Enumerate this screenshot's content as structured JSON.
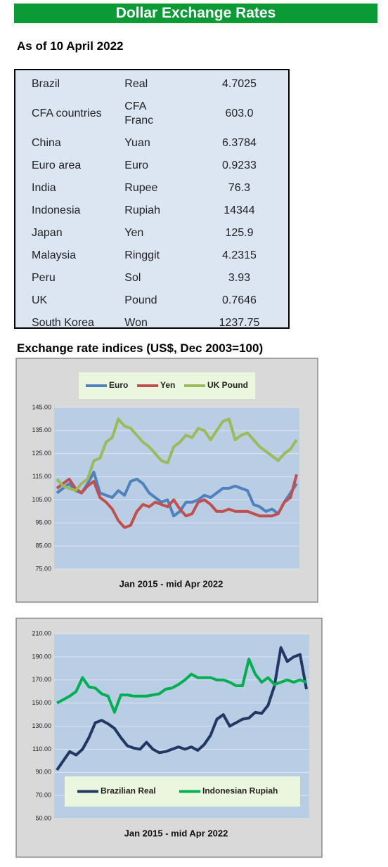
{
  "title": "Dollar Exchange Rates",
  "subtitle": "As of 10 April 2022",
  "table": {
    "rows": [
      [
        "Brazil",
        "Real",
        "4.7025"
      ],
      [
        "CFA countries",
        "CFA Franc",
        "603.0"
      ],
      [
        "China",
        "Yuan",
        "6.3784"
      ],
      [
        "Euro area",
        "Euro",
        "0.9233"
      ],
      [
        "India",
        "Rupee",
        "76.3"
      ],
      [
        "Indonesia",
        "Rupiah",
        "14344"
      ],
      [
        "Japan",
        "Yen",
        "125.9"
      ],
      [
        "Malaysia",
        "Ringgit",
        "4.2315"
      ],
      [
        "Peru",
        "Sol",
        "3.93"
      ],
      [
        "UK",
        "Pound",
        "0.7646"
      ],
      [
        "South Korea",
        "Won",
        "1237.75"
      ]
    ]
  },
  "section_title": "Exchange rate indices (US$, Dec 2003=100)",
  "chart_data": [
    {
      "type": "line",
      "caption": "Jan 2015 - mid Apr 2022",
      "grid": true,
      "ylim": [
        75,
        145
      ],
      "yticks": [
        {
          "value": 75,
          "label": "75.00"
        },
        {
          "value": 85,
          "label": "85.00"
        },
        {
          "value": 95,
          "label": "95.00"
        },
        {
          "value": 105,
          "label": "105.00"
        },
        {
          "value": 115,
          "label": "115.00"
        },
        {
          "value": 125,
          "label": "125.00"
        },
        {
          "value": 135,
          "label": "135.00"
        },
        {
          "value": 145,
          "label": "145.00"
        }
      ],
      "series": [
        {
          "name": "Euro",
          "color": "#4f81bd",
          "values": [
            108,
            110,
            112,
            109,
            108,
            112,
            117,
            108,
            107,
            106,
            109,
            107,
            113,
            114,
            112,
            108,
            106,
            104,
            105,
            98,
            100,
            104,
            104,
            105,
            107,
            106,
            108,
            110,
            110,
            111,
            110,
            109,
            103,
            102,
            100,
            101,
            99,
            104,
            108,
            112
          ]
        },
        {
          "name": "Yen",
          "color": "#c0504d",
          "values": [
            110,
            112,
            114,
            110,
            108,
            111,
            113,
            106,
            104,
            101,
            96,
            93,
            94,
            100,
            103,
            102,
            104,
            103,
            102,
            105,
            101,
            98,
            99,
            104,
            105,
            103,
            100,
            100,
            101,
            100,
            100,
            100,
            99,
            98,
            98,
            98,
            99,
            104,
            106,
            116
          ]
        },
        {
          "name": "UK Pound",
          "color": "#9bbb59",
          "values": [
            114,
            111,
            110,
            109,
            112,
            114,
            122,
            123,
            130,
            132,
            140,
            137,
            136,
            133,
            130,
            128,
            125,
            122,
            121,
            128,
            130,
            133,
            132,
            136,
            135,
            131,
            135,
            139,
            140,
            131,
            133,
            134,
            131,
            128,
            126,
            124,
            122,
            125,
            127,
            131
          ]
        }
      ]
    },
    {
      "type": "line",
      "caption": "Jan 2015 - mid Apr 2022",
      "grid": true,
      "ylim": [
        50,
        210
      ],
      "yticks": [
        {
          "value": 50,
          "label": "50.00"
        },
        {
          "value": 70,
          "label": "70.00"
        },
        {
          "value": 90,
          "label": "90.00"
        },
        {
          "value": 110,
          "label": "110.00"
        },
        {
          "value": 130,
          "label": "130.00"
        },
        {
          "value": 150,
          "label": "150.00"
        },
        {
          "value": 170,
          "label": "170.00"
        },
        {
          "value": 190,
          "label": "190.00"
        },
        {
          "value": 210,
          "label": "210.00"
        }
      ],
      "series": [
        {
          "name": "Brazilian Real",
          "color": "#1f3864",
          "values": [
            92,
            100,
            108,
            105,
            110,
            120,
            133,
            135,
            132,
            128,
            120,
            113,
            111,
            110,
            116,
            110,
            107,
            108,
            110,
            112,
            110,
            112,
            109,
            114,
            122,
            136,
            140,
            130,
            133,
            136,
            137,
            142,
            141,
            148,
            165,
            198,
            186,
            190,
            192,
            162
          ]
        },
        {
          "name": "Indonesian Rupiah",
          "color": "#00b050",
          "values": [
            150,
            153,
            156,
            160,
            172,
            164,
            163,
            158,
            156,
            142,
            157,
            157,
            156,
            156,
            156,
            157,
            158,
            162,
            163,
            166,
            170,
            175,
            172,
            172,
            172,
            170,
            170,
            168,
            165,
            165,
            188,
            175,
            168,
            172,
            166,
            168,
            170,
            168,
            170,
            168
          ]
        }
      ]
    }
  ]
}
